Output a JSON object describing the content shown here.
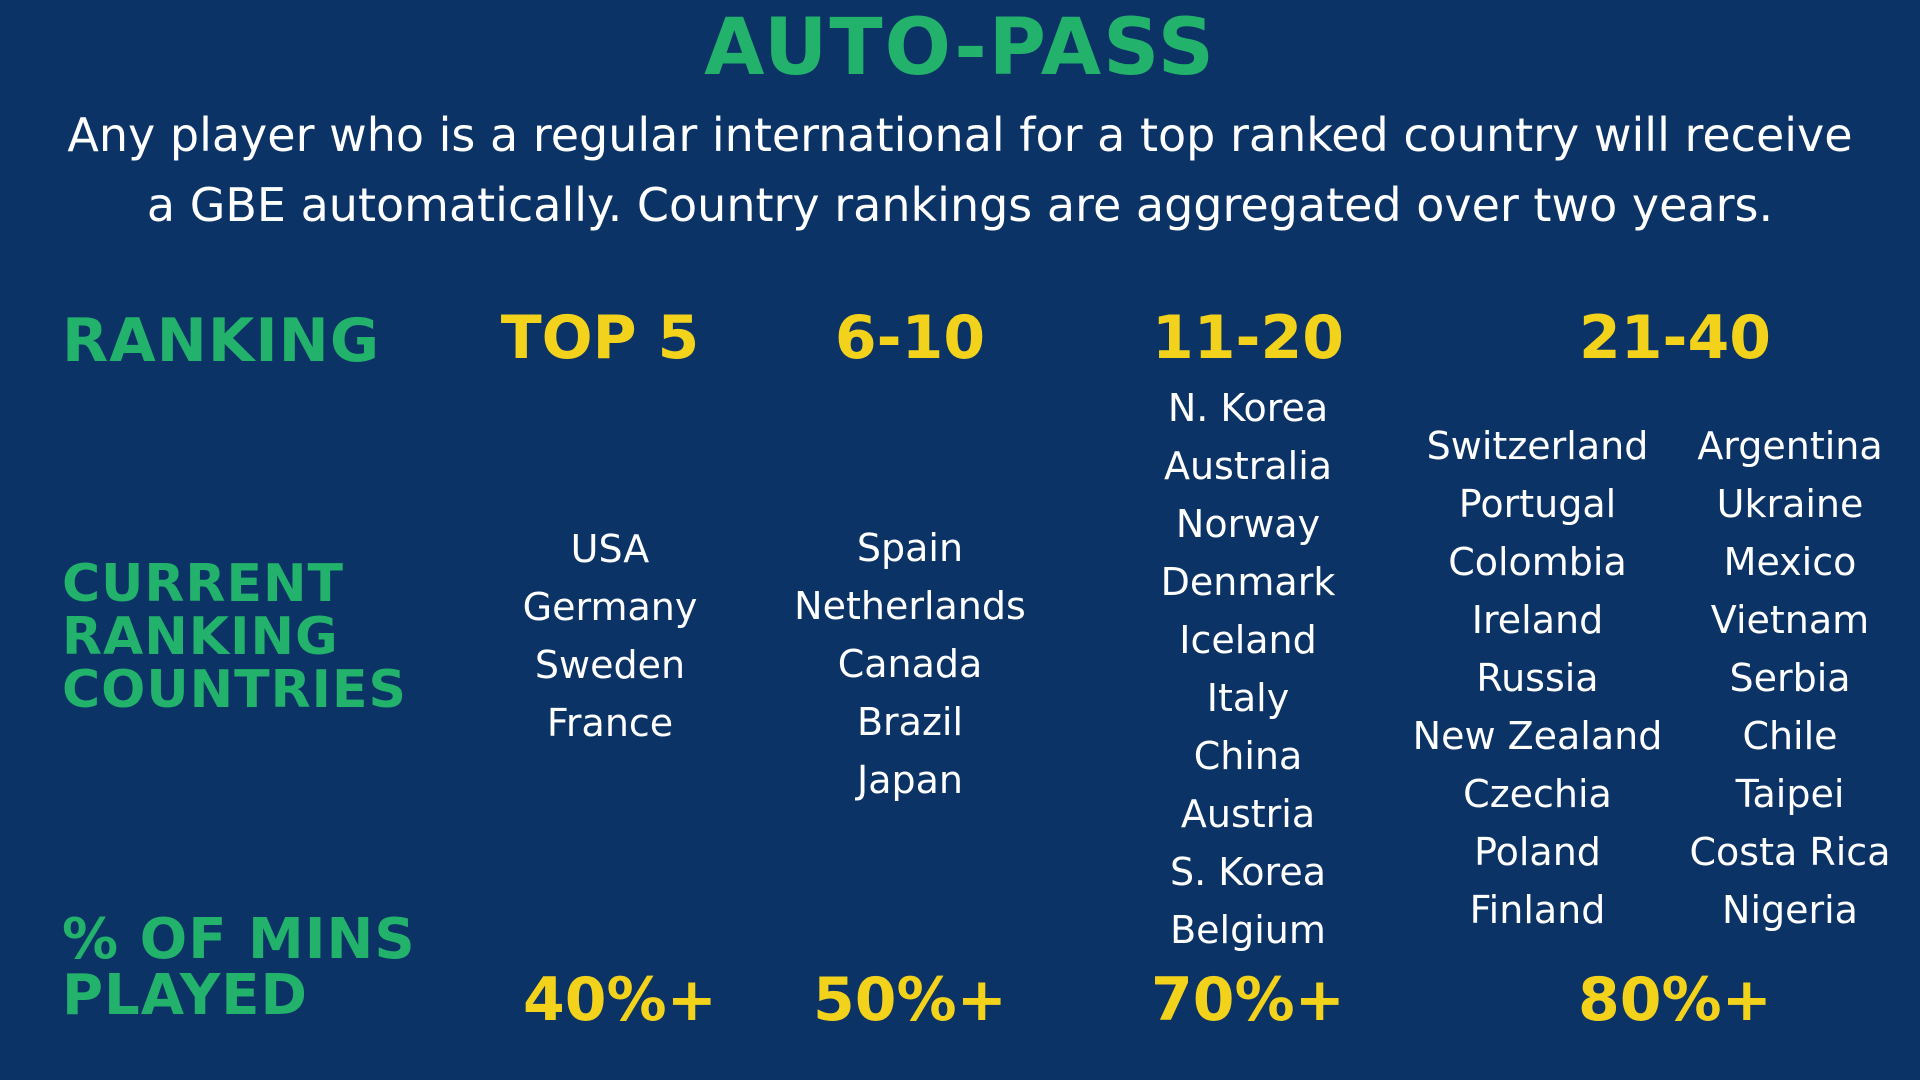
{
  "title": "AUTO-PASS",
  "subtitle_line1": "Any player who is a regular international for a top ranked country will receive",
  "subtitle_line2": "a GBE automatically. Country rankings are aggregated over two years.",
  "row_labels": {
    "ranking": "RANKING",
    "current": [
      "CURRENT",
      "RANKING",
      "COUNTRIES"
    ],
    "mins": [
      "% OF MINS",
      "PLAYED"
    ]
  },
  "tiers": [
    {
      "header": "TOP 5",
      "percent": "40%+",
      "countries": [
        "USA",
        "Germany",
        "Sweden",
        "France"
      ]
    },
    {
      "header": "6-10",
      "percent": "50%+",
      "countries": [
        "Spain",
        "Netherlands",
        "Canada",
        "Brazil",
        "Japan"
      ]
    },
    {
      "header": "11-20",
      "percent": "70%+",
      "countries": [
        "N. Korea",
        "Australia",
        "Norway",
        "Denmark",
        "Iceland",
        "Italy",
        "China",
        "Austria",
        "S. Korea",
        "Belgium"
      ]
    },
    {
      "header": "21-40",
      "percent": "80%+",
      "countries_col1": [
        "Switzerland",
        "Portugal",
        "Colombia",
        "Ireland",
        "Russia",
        "New Zealand",
        "Czechia",
        "Poland",
        "Finland"
      ],
      "countries_col2": [
        "Argentina",
        "Ukraine",
        "Mexico",
        "Vietnam",
        "Serbia",
        "Chile",
        "Taipei",
        "Costa Rica",
        "Nigeria"
      ]
    }
  ],
  "colors": {
    "background": "#0b3366",
    "green": "#22b26b",
    "yellow": "#f2d21b",
    "text": "#ffffff"
  }
}
